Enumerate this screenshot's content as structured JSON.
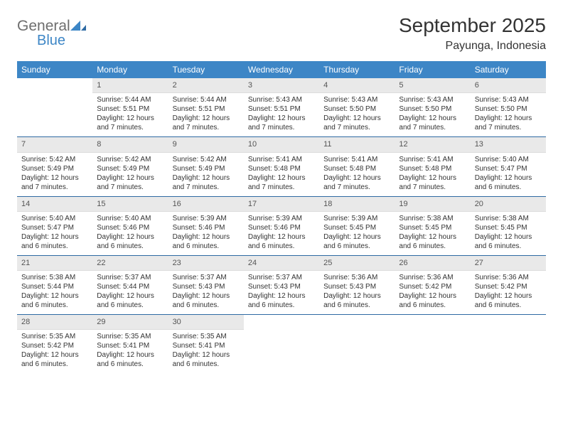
{
  "brand": {
    "name_top": "General",
    "name_bottom": "Blue"
  },
  "title": "September 2025",
  "location": "Payunga, Indonesia",
  "colors": {
    "header_bg": "#3d86c6",
    "header_text": "#ffffff",
    "daynum_bg": "#e9e9e9",
    "daynum_text": "#555555",
    "body_text": "#333333",
    "week_sep": "#2e6aa3",
    "logo_gray": "#6e6e6e",
    "logo_blue": "#3d86c6",
    "page_bg": "#ffffff"
  },
  "typography": {
    "title_fontsize_pt": 21,
    "subtitle_fontsize_pt": 12,
    "header_fontsize_pt": 9,
    "daynum_fontsize_pt": 8,
    "body_fontsize_pt": 7.5,
    "font_family": "Arial"
  },
  "layout": {
    "columns": 7
  },
  "weekdays": [
    "Sunday",
    "Monday",
    "Tuesday",
    "Wednesday",
    "Thursday",
    "Friday",
    "Saturday"
  ],
  "weeks": [
    [
      null,
      {
        "n": "1",
        "sr": "5:44 AM",
        "ss": "5:51 PM",
        "dl": "12 hours and 7 minutes."
      },
      {
        "n": "2",
        "sr": "5:44 AM",
        "ss": "5:51 PM",
        "dl": "12 hours and 7 minutes."
      },
      {
        "n": "3",
        "sr": "5:43 AM",
        "ss": "5:51 PM",
        "dl": "12 hours and 7 minutes."
      },
      {
        "n": "4",
        "sr": "5:43 AM",
        "ss": "5:50 PM",
        "dl": "12 hours and 7 minutes."
      },
      {
        "n": "5",
        "sr": "5:43 AM",
        "ss": "5:50 PM",
        "dl": "12 hours and 7 minutes."
      },
      {
        "n": "6",
        "sr": "5:43 AM",
        "ss": "5:50 PM",
        "dl": "12 hours and 7 minutes."
      }
    ],
    [
      {
        "n": "7",
        "sr": "5:42 AM",
        "ss": "5:49 PM",
        "dl": "12 hours and 7 minutes."
      },
      {
        "n": "8",
        "sr": "5:42 AM",
        "ss": "5:49 PM",
        "dl": "12 hours and 7 minutes."
      },
      {
        "n": "9",
        "sr": "5:42 AM",
        "ss": "5:49 PM",
        "dl": "12 hours and 7 minutes."
      },
      {
        "n": "10",
        "sr": "5:41 AM",
        "ss": "5:48 PM",
        "dl": "12 hours and 7 minutes."
      },
      {
        "n": "11",
        "sr": "5:41 AM",
        "ss": "5:48 PM",
        "dl": "12 hours and 7 minutes."
      },
      {
        "n": "12",
        "sr": "5:41 AM",
        "ss": "5:48 PM",
        "dl": "12 hours and 7 minutes."
      },
      {
        "n": "13",
        "sr": "5:40 AM",
        "ss": "5:47 PM",
        "dl": "12 hours and 6 minutes."
      }
    ],
    [
      {
        "n": "14",
        "sr": "5:40 AM",
        "ss": "5:47 PM",
        "dl": "12 hours and 6 minutes."
      },
      {
        "n": "15",
        "sr": "5:40 AM",
        "ss": "5:46 PM",
        "dl": "12 hours and 6 minutes."
      },
      {
        "n": "16",
        "sr": "5:39 AM",
        "ss": "5:46 PM",
        "dl": "12 hours and 6 minutes."
      },
      {
        "n": "17",
        "sr": "5:39 AM",
        "ss": "5:46 PM",
        "dl": "12 hours and 6 minutes."
      },
      {
        "n": "18",
        "sr": "5:39 AM",
        "ss": "5:45 PM",
        "dl": "12 hours and 6 minutes."
      },
      {
        "n": "19",
        "sr": "5:38 AM",
        "ss": "5:45 PM",
        "dl": "12 hours and 6 minutes."
      },
      {
        "n": "20",
        "sr": "5:38 AM",
        "ss": "5:45 PM",
        "dl": "12 hours and 6 minutes."
      }
    ],
    [
      {
        "n": "21",
        "sr": "5:38 AM",
        "ss": "5:44 PM",
        "dl": "12 hours and 6 minutes."
      },
      {
        "n": "22",
        "sr": "5:37 AM",
        "ss": "5:44 PM",
        "dl": "12 hours and 6 minutes."
      },
      {
        "n": "23",
        "sr": "5:37 AM",
        "ss": "5:43 PM",
        "dl": "12 hours and 6 minutes."
      },
      {
        "n": "24",
        "sr": "5:37 AM",
        "ss": "5:43 PM",
        "dl": "12 hours and 6 minutes."
      },
      {
        "n": "25",
        "sr": "5:36 AM",
        "ss": "5:43 PM",
        "dl": "12 hours and 6 minutes."
      },
      {
        "n": "26",
        "sr": "5:36 AM",
        "ss": "5:42 PM",
        "dl": "12 hours and 6 minutes."
      },
      {
        "n": "27",
        "sr": "5:36 AM",
        "ss": "5:42 PM",
        "dl": "12 hours and 6 minutes."
      }
    ],
    [
      {
        "n": "28",
        "sr": "5:35 AM",
        "ss": "5:42 PM",
        "dl": "12 hours and 6 minutes."
      },
      {
        "n": "29",
        "sr": "5:35 AM",
        "ss": "5:41 PM",
        "dl": "12 hours and 6 minutes."
      },
      {
        "n": "30",
        "sr": "5:35 AM",
        "ss": "5:41 PM",
        "dl": "12 hours and 6 minutes."
      },
      null,
      null,
      null,
      null
    ]
  ],
  "labels": {
    "sunrise": "Sunrise:",
    "sunset": "Sunset:",
    "daylight": "Daylight:"
  }
}
